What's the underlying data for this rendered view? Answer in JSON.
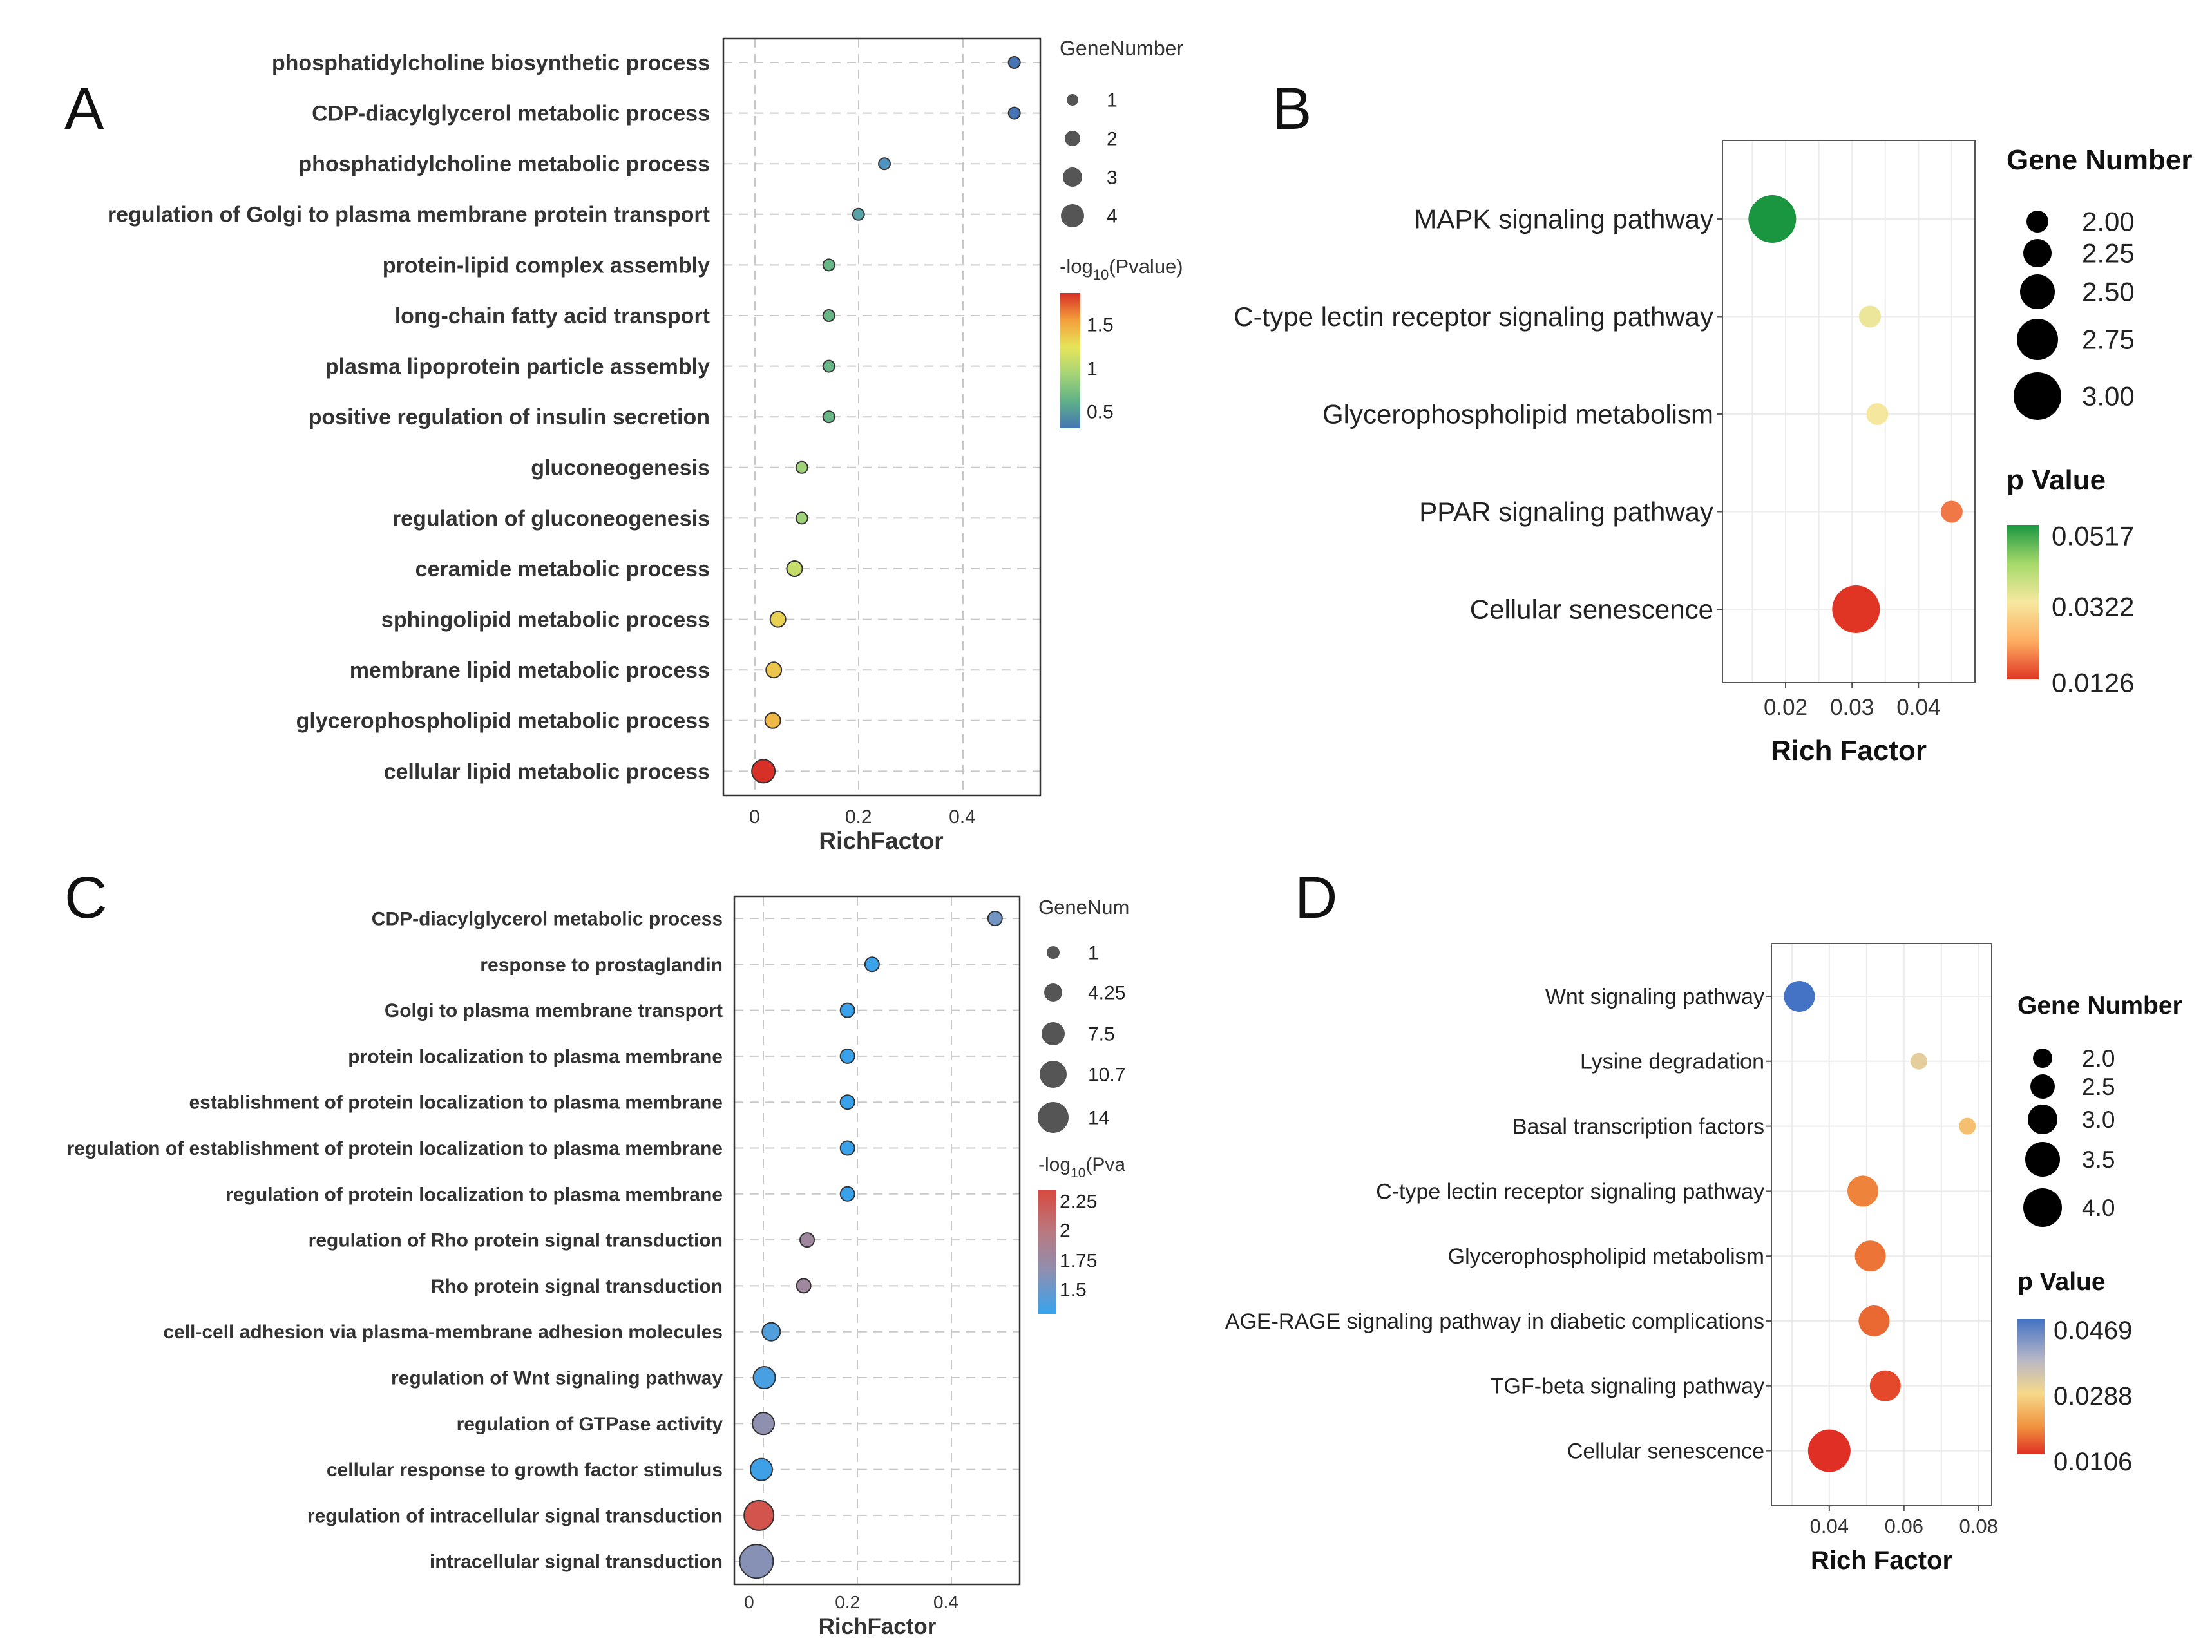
{
  "panels": {
    "A": {
      "letter": "A",
      "chart_data": {
        "type": "scatter",
        "xlabel": "RichFactor",
        "xlim": [
          -0.06,
          0.55
        ],
        "xticks": [
          0,
          0.2,
          0.4
        ],
        "xtick_labels": [
          "0",
          "0.2",
          "0.4"
        ],
        "categories": [
          "phosphatidylcholine biosynthetic process",
          "CDP-diacylglycerol metabolic process",
          "phosphatidylcholine metabolic process",
          "regulation of Golgi to plasma membrane protein transport",
          "protein-lipid complex assembly",
          "long-chain fatty acid transport",
          "plasma lipoprotein particle assembly",
          "positive regulation of insulin secretion",
          "gluconeogenesis",
          "regulation of gluconeogenesis",
          "ceramide metabolic process",
          "sphingolipid metabolic process",
          "membrane lipid metabolic process",
          "glycerophospholipid metabolic process",
          "cellular lipid metabolic process"
        ],
        "x": [
          0.5,
          0.5,
          0.25,
          0.2,
          0.143,
          0.143,
          0.143,
          0.143,
          0.091,
          0.091,
          0.077,
          0.045,
          0.037,
          0.035,
          0.017
        ],
        "size": [
          1,
          1,
          1,
          1,
          1,
          1,
          1,
          1,
          1,
          1,
          2,
          2,
          2,
          2,
          4
        ],
        "color": [
          0.25,
          0.25,
          0.55,
          0.65,
          0.8,
          0.8,
          0.8,
          0.8,
          1.0,
          1.0,
          1.15,
          1.35,
          1.4,
          1.45,
          1.8
        ],
        "size_legend": {
          "title": "GeneNumber",
          "values": [
            "1",
            "2",
            "3",
            "4"
          ]
        },
        "color_legend": {
          "title_prefix": "-log",
          "title_sub": "10",
          "title_suffix": "(Pvalue)",
          "ticks": [
            "1.5",
            "1",
            "0.5"
          ]
        },
        "color_scale": [
          "#d73027",
          "#f39f3b",
          "#e6e45a",
          "#a6d477",
          "#5fb187",
          "#4a8fcc",
          "#4575b4"
        ]
      }
    },
    "B": {
      "letter": "B",
      "chart_data": {
        "type": "scatter",
        "xlabel": "Rich Factor",
        "xlim": [
          0.0105,
          0.0485
        ],
        "xticks": [
          0.02,
          0.03,
          0.04
        ],
        "xtick_labels": [
          "0.02",
          "0.03",
          "0.04"
        ],
        "categories": [
          "MAPK signaling pathway",
          "C-type lectin receptor signaling pathway",
          "Glycerophospholipid metabolism",
          "PPAR signaling pathway",
          "Cellular senescence"
        ],
        "x": [
          0.018,
          0.0327,
          0.0338,
          0.045,
          0.0306
        ],
        "size": [
          3,
          2,
          2,
          2,
          3
        ],
        "pvalue": [
          0.0517,
          0.0335,
          0.032,
          0.018,
          0.0126
        ],
        "size_legend": {
          "title": "Gene Number",
          "values": [
            "2.00",
            "2.25",
            "2.50",
            "2.75",
            "3.00"
          ]
        },
        "color_legend": {
          "title": "p Value",
          "ticks": [
            "0.0517",
            "0.0322",
            "0.0126"
          ]
        },
        "color_scale": [
          "#1a9641",
          "#a6d96a",
          "#f6e8a0",
          "#fdae61",
          "#e03524"
        ]
      }
    },
    "C": {
      "letter": "C",
      "chart_data": {
        "type": "scatter",
        "xlabel": "RichFactor",
        "xlim": [
          -0.03,
          0.55
        ],
        "xticks": [
          0,
          0.2,
          0.4
        ],
        "xtick_labels": [
          "0",
          "0.2",
          "0.4"
        ],
        "categories": [
          "CDP-diacylglycerol metabolic process",
          "response to prostaglandin",
          "Golgi to plasma membrane transport",
          "protein localization to plasma membrane",
          "establishment of protein localization to plasma membrane",
          "regulation of establishment of protein localization to plasma membrane",
          "regulation of protein localization to plasma membrane",
          "regulation of Rho protein signal transduction",
          "Rho protein signal transduction",
          "cell-cell adhesion via plasma-membrane adhesion molecules",
          "regulation of Wnt signaling pathway",
          "regulation of GTPase activity",
          "cellular response to growth factor stimulus",
          "regulation of intracellular signal transduction",
          "intracellular signal transduction"
        ],
        "x": [
          0.5,
          0.25,
          0.2,
          0.2,
          0.2,
          0.2,
          0.2,
          0.118,
          0.111,
          0.045,
          0.031,
          0.029,
          0.025,
          0.02,
          0.015
        ],
        "size": [
          1,
          1,
          1,
          1,
          1,
          1,
          1,
          1,
          1,
          2,
          3,
          3,
          3,
          7,
          9
        ],
        "color": [
          1.75,
          1.4,
          1.4,
          1.4,
          1.4,
          1.4,
          1.4,
          1.95,
          1.95,
          1.62,
          1.58,
          1.85,
          1.45,
          2.3,
          1.82
        ],
        "size_legend": {
          "title": "GeneNum",
          "values": [
            "1",
            "4.25",
            "7.5",
            "10.7",
            "14"
          ]
        },
        "color_legend": {
          "title_prefix": "-log",
          "title_sub": "10",
          "title_suffix": "(Pva",
          "ticks": [
            "2.25",
            "2",
            "1.75",
            "1.5"
          ]
        },
        "color_scale": [
          "#d94a40",
          "#b77a82",
          "#8f8fb0",
          "#4a9fe0",
          "#36a3ee"
        ]
      }
    },
    "D": {
      "letter": "D",
      "chart_data": {
        "type": "scatter",
        "xlabel": "Rich Factor",
        "xlim": [
          0.0245,
          0.0835
        ],
        "xticks": [
          0.04,
          0.06,
          0.08
        ],
        "xtick_labels": [
          "0.04",
          "0.06",
          "0.08"
        ],
        "categories": [
          "Wnt signaling pathway",
          "Lysine degradation",
          "Basal transcription factors",
          "C-type lectin receptor signaling pathway",
          "Glycerophospholipid metabolism",
          "AGE-RAGE signaling pathway in diabetic complications",
          "TGF-beta signaling pathway",
          "Cellular senescence"
        ],
        "x": [
          0.032,
          0.064,
          0.077,
          0.049,
          0.051,
          0.052,
          0.055,
          0.04
        ],
        "size": [
          3,
          2,
          2,
          3,
          3,
          3,
          3,
          4
        ],
        "pvalue": [
          0.0469,
          0.0315,
          0.0255,
          0.0185,
          0.017,
          0.016,
          0.013,
          0.0106
        ],
        "size_legend": {
          "title": "Gene Number",
          "values": [
            "2.0",
            "2.5",
            "3.0",
            "3.5",
            "4.0"
          ]
        },
        "color_legend": {
          "title": "p Value",
          "ticks": [
            "0.0469",
            "0.0288",
            "0.0106"
          ]
        },
        "color_scale": [
          "#4472c4",
          "#b7b6c6",
          "#f6d98a",
          "#f0913e",
          "#e02f24"
        ]
      }
    }
  }
}
